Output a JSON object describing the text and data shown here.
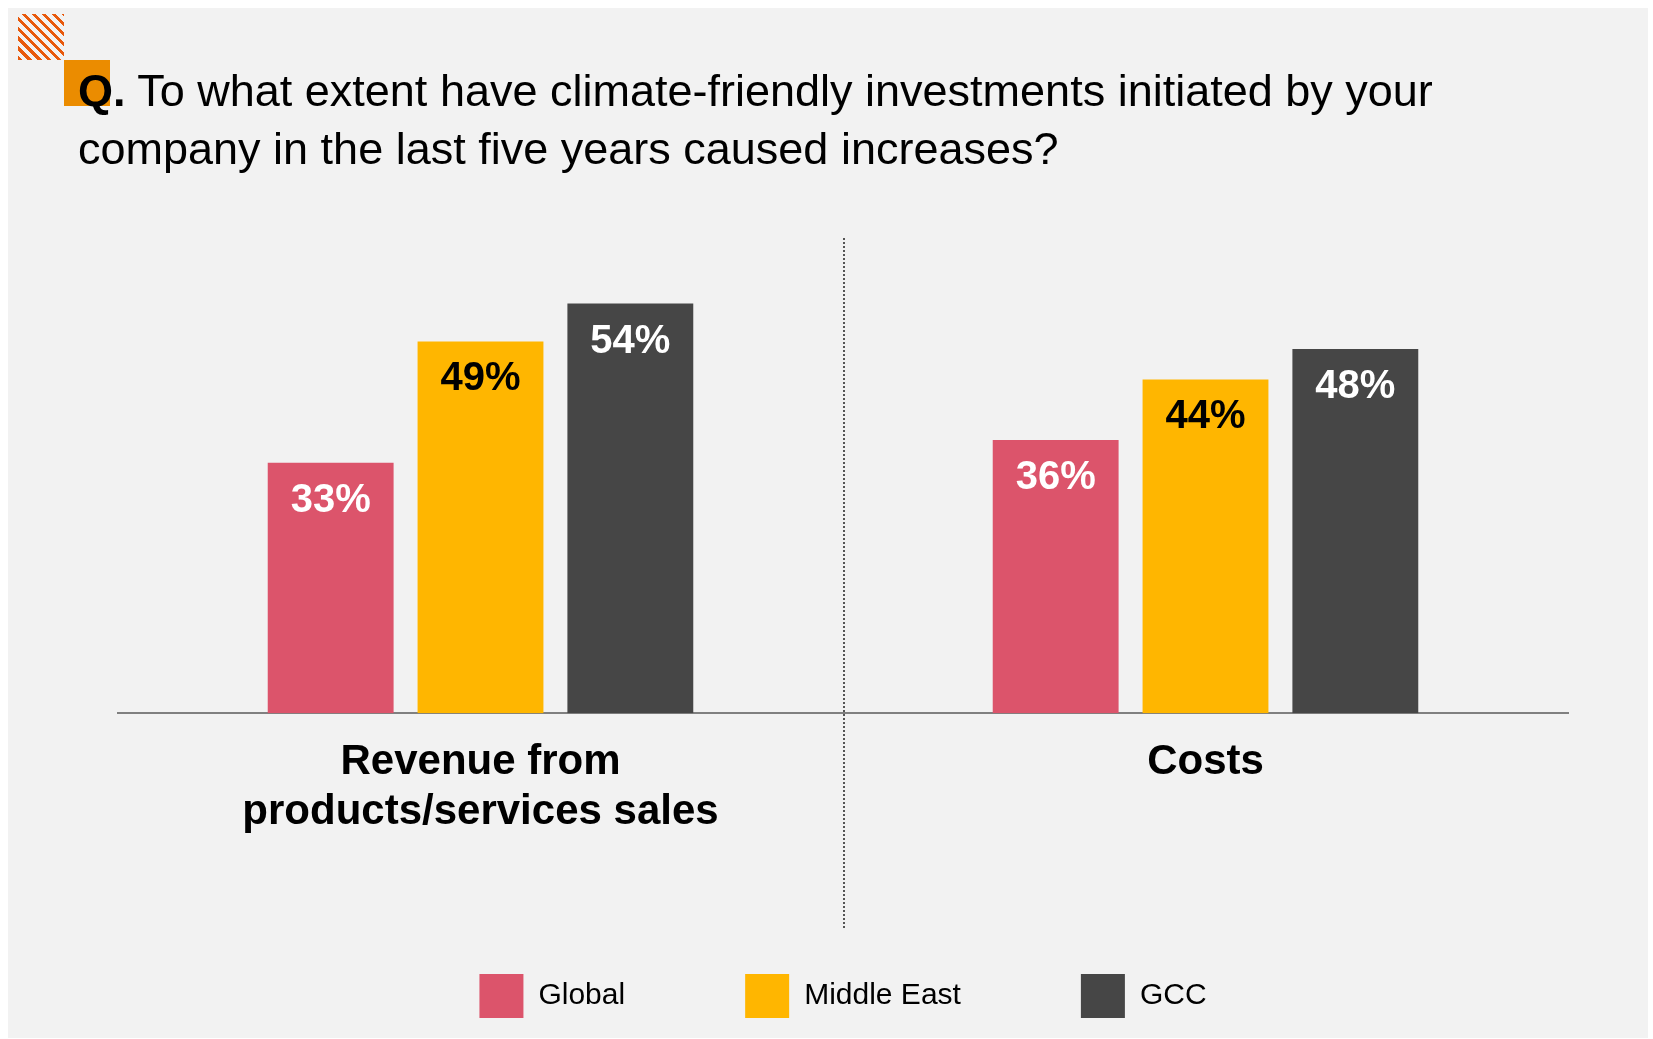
{
  "chart_data": {
    "type": "bar",
    "title": "Q. To what extent have climate-friendly investments initiated by your company in the last five years caused increases?",
    "categories": [
      "Revenue from products/services sales",
      "Costs"
    ],
    "series": [
      {
        "name": "Global",
        "color": "#dc546b",
        "values": [
          33,
          36
        ],
        "value_labels": [
          "33%",
          "36%"
        ]
      },
      {
        "name": "Middle East",
        "color": "#ffb600",
        "values": [
          49,
          44
        ],
        "value_labels": [
          "49%",
          "44%"
        ]
      },
      {
        "name": "GCC",
        "color": "#464646",
        "values": [
          54,
          48
        ],
        "value_labels": [
          "54%",
          "48%"
        ]
      }
    ],
    "legend": "bottom",
    "grid": false,
    "tick_labels": "x"
  }
}
